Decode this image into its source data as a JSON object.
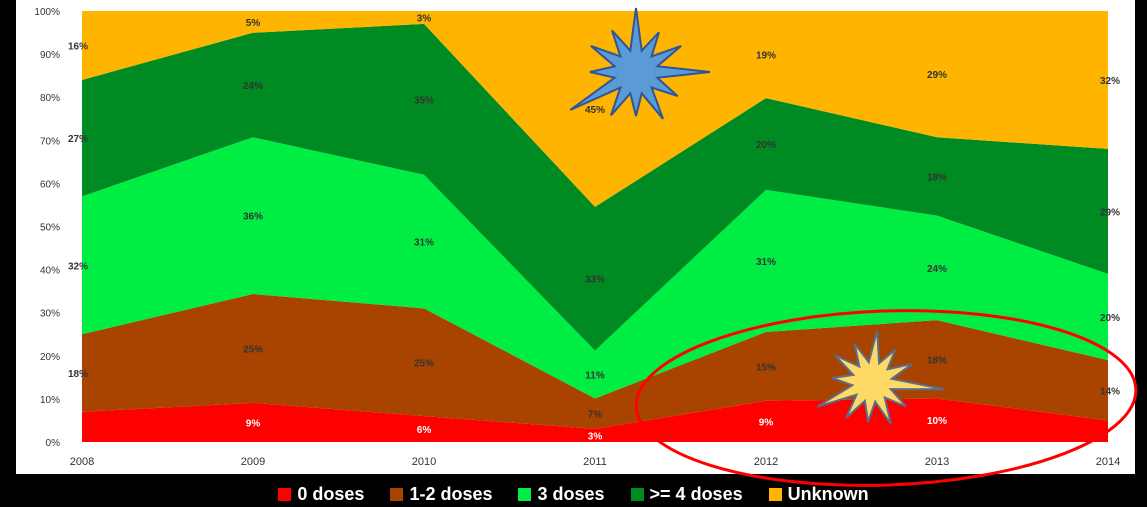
{
  "chart_data": {
    "type": "area",
    "stacked": true,
    "normalized": true,
    "categories": [
      "2008",
      "2009",
      "2010",
      "2011",
      "2012",
      "2013",
      "2014"
    ],
    "ylim": [
      0,
      100
    ],
    "yticks": [
      "0%",
      "10%",
      "20%",
      "30%",
      "40%",
      "50%",
      "60%",
      "70%",
      "80%",
      "90%",
      "100%"
    ],
    "legend_position": "bottom",
    "grid": false,
    "series": [
      {
        "name": "0 doses",
        "color": "#ff0000",
        "values": [
          7,
          9,
          6,
          3,
          9,
          10,
          5
        ],
        "labels": [
          "%",
          "9%",
          "6%",
          "3%",
          "9%",
          "10%",
          "5"
        ]
      },
      {
        "name": "1-2 doses",
        "color": "#a84400",
        "values": [
          18,
          25,
          25,
          7,
          15,
          18,
          14
        ],
        "labels": [
          "18%",
          "25%",
          "25%",
          "7%",
          "15%",
          "18%",
          "14%"
        ]
      },
      {
        "name": "3 doses",
        "color": "#00ee44",
        "values": [
          32,
          36,
          31,
          11,
          31,
          24,
          20
        ],
        "labels": [
          "32%",
          "36%",
          "31%",
          "11%",
          "31%",
          "24%",
          "20%"
        ]
      },
      {
        "name": ">= 4 doses",
        "color": "#008a22",
        "values": [
          27,
          24,
          35,
          33,
          20,
          18,
          29
        ],
        "labels": [
          "27%",
          "24%",
          "35%",
          "33%",
          "20%",
          "18%",
          "29%"
        ]
      },
      {
        "name": "Unknown",
        "color": "#ffb400",
        "values": [
          16,
          5,
          3,
          45,
          19,
          29,
          32
        ],
        "labels": [
          "16%",
          "5%",
          "3%",
          "45%",
          "19%",
          "29%",
          "32%"
        ]
      }
    ],
    "annotations": [
      {
        "shape": "starburst",
        "color": "#5b9bd5",
        "near": "2011 Unknown"
      },
      {
        "shape": "starburst",
        "color": "#ffd966",
        "near": "2013 1-2 doses"
      },
      {
        "shape": "ellipse",
        "color": "#ff0000",
        "encloses": "2012-2014 lower series"
      }
    ]
  }
}
